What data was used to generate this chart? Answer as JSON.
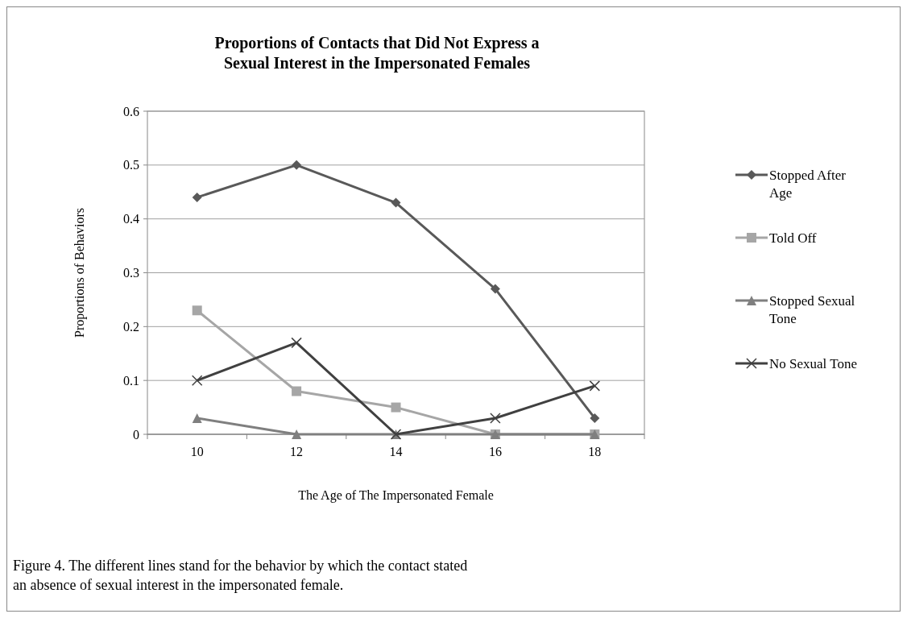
{
  "chart_data": {
    "type": "line",
    "title": "Proportions of Contacts that Did Not Express a Sexual Interest in the Impersonated Females",
    "xlabel": "The Age of The Impersonated Female",
    "ylabel": "Proportions of Behaviors",
    "categories": [
      "10",
      "12",
      "14",
      "16",
      "18"
    ],
    "ylim": [
      0,
      0.6
    ],
    "yticks": [
      0,
      0.1,
      0.2,
      0.3,
      0.4,
      0.5,
      0.6
    ],
    "grid": "y",
    "legend": "right",
    "series": [
      {
        "name": "Stopped After Age",
        "color": "#595959",
        "marker": "diamond",
        "values": [
          0.44,
          0.5,
          0.43,
          0.27,
          0.03
        ]
      },
      {
        "name": "Told Off",
        "color": "#a6a6a6",
        "marker": "square",
        "values": [
          0.23,
          0.08,
          0.05,
          0,
          0
        ]
      },
      {
        "name": "Stopped Sexual Tone",
        "color": "#7f7f7f",
        "marker": "triangle",
        "values": [
          0.03,
          0,
          0,
          0,
          0
        ]
      },
      {
        "name": "No Sexual Tone",
        "color": "#404040",
        "marker": "cross",
        "values": [
          0.1,
          0.17,
          0,
          0.03,
          0.09
        ]
      }
    ],
    "annotations": [
      "Figure 4. The different lines stand for the behavior by which the contact stated an absence of sexual interest in the impersonated female."
    ]
  }
}
